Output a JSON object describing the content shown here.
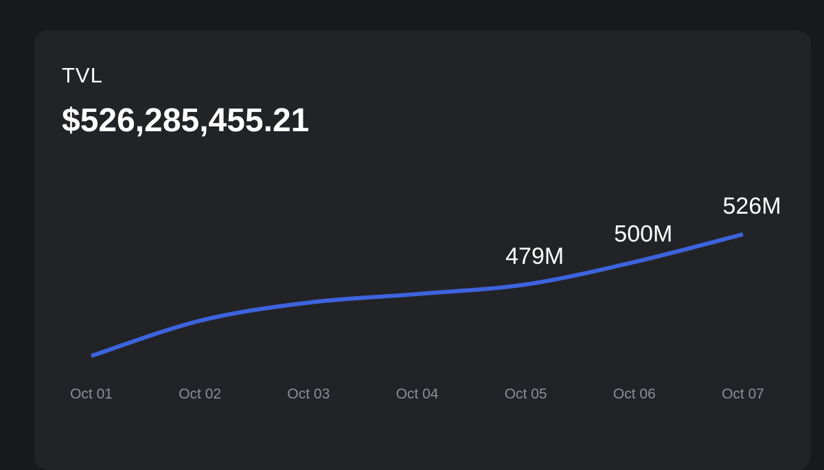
{
  "card": {
    "label": "TVL",
    "value": "$526,285,455.21"
  },
  "chart_data": {
    "type": "line",
    "categories": [
      "Oct 01",
      "Oct 02",
      "Oct 03",
      "Oct 04",
      "Oct 05",
      "Oct 06",
      "Oct 07"
    ],
    "series": [
      {
        "values": [
          412,
          445,
          462,
          470,
          479,
          500,
          526
        ],
        "color": "#3d63dd"
      }
    ],
    "data_labels": [
      {
        "index": 4,
        "text": "479M"
      },
      {
        "index": 5,
        "text": "500M"
      },
      {
        "index": 6,
        "text": "526M"
      }
    ],
    "xlabel": "",
    "ylabel": "",
    "grid": false,
    "legend": "none"
  }
}
